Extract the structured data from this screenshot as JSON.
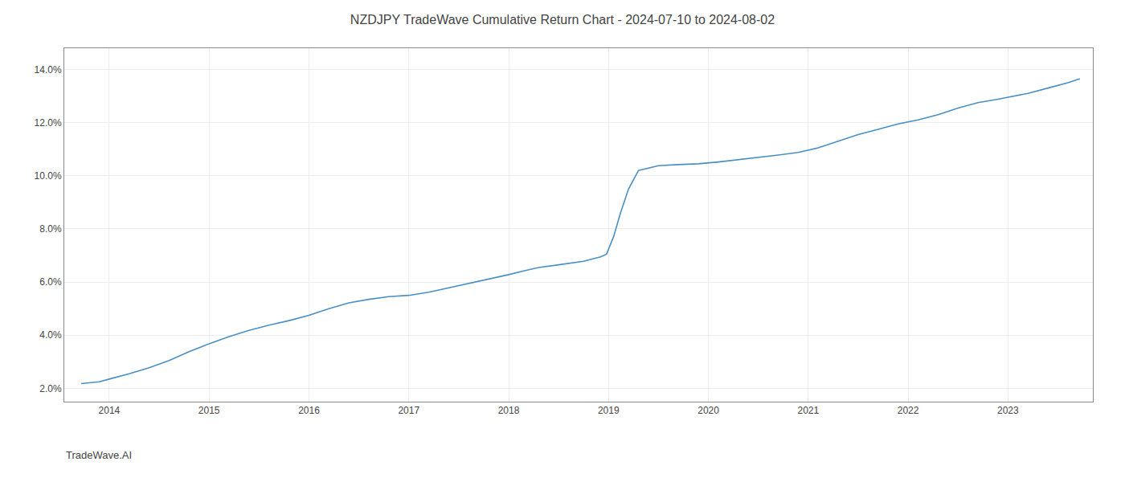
{
  "chart_data": {
    "type": "line",
    "title": "NZDJPY TradeWave Cumulative Return Chart - 2024-07-10 to 2024-08-02",
    "annotations": [
      {
        "text": "TradeWave.AI"
      }
    ],
    "color": "#4a90c4",
    "grid": true,
    "x": [
      2013.72,
      2013.9,
      2014.0,
      2014.2,
      2014.4,
      2014.6,
      2014.8,
      2015.0,
      2015.2,
      2015.4,
      2015.6,
      2015.8,
      2016.0,
      2016.2,
      2016.4,
      2016.6,
      2016.8,
      2017.0,
      2017.2,
      2017.4,
      2017.6,
      2017.8,
      2018.0,
      2018.15,
      2018.3,
      2018.5,
      2018.65,
      2018.75,
      2018.85,
      2018.92,
      2018.98,
      2019.05,
      2019.12,
      2019.2,
      2019.3,
      2019.5,
      2019.7,
      2019.9,
      2020.1,
      2020.3,
      2020.5,
      2020.7,
      2020.9,
      2021.1,
      2021.3,
      2021.5,
      2021.7,
      2021.9,
      2022.1,
      2022.3,
      2022.5,
      2022.7,
      2022.9,
      2023.0,
      2023.2,
      2023.4,
      2023.6,
      2023.72
    ],
    "values": [
      2.18,
      2.25,
      2.35,
      2.55,
      2.78,
      3.05,
      3.38,
      3.68,
      3.95,
      4.18,
      4.38,
      4.55,
      4.75,
      5.0,
      5.22,
      5.35,
      5.45,
      5.5,
      5.62,
      5.78,
      5.95,
      6.1,
      6.28,
      6.42,
      6.55,
      6.65,
      6.72,
      6.78,
      6.88,
      6.95,
      7.05,
      7.7,
      8.6,
      9.5,
      10.2,
      10.38,
      10.42,
      10.45,
      10.52,
      10.6,
      10.7,
      10.78,
      10.88,
      11.05,
      11.3,
      11.55,
      11.75,
      11.95,
      12.1,
      12.3,
      12.55,
      12.75,
      12.88,
      12.95,
      13.1,
      13.3,
      13.5,
      13.65
    ],
    "xlim": [
      2013.55,
      2023.85
    ],
    "xticks": [
      2014,
      2015,
      2016,
      2017,
      2018,
      2019,
      2020,
      2021,
      2022,
      2023
    ],
    "ylim": [
      1.5,
      14.8
    ],
    "yticks": [
      {
        "value": 2.0,
        "label": "2.0%"
      },
      {
        "value": 4.0,
        "label": "4.0%"
      },
      {
        "value": 6.0,
        "label": "6.0%"
      },
      {
        "value": 8.0,
        "label": "8.0%"
      },
      {
        "value": 10.0,
        "label": "10.0%"
      },
      {
        "value": 12.0,
        "label": "12.0%"
      },
      {
        "value": 14.0,
        "label": "14.0%"
      }
    ]
  }
}
